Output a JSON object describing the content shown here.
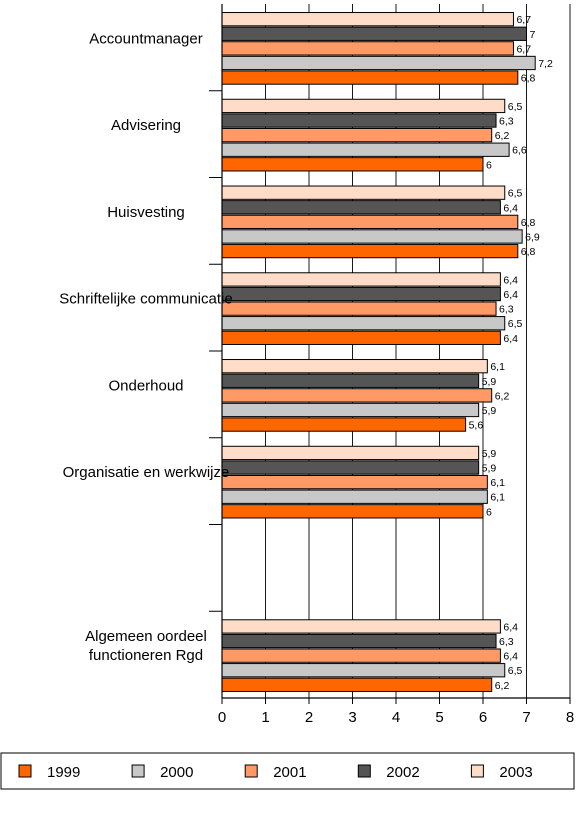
{
  "chart_data": {
    "type": "bar",
    "orientation": "horizontal",
    "categories": [
      [
        "Accountmanager"
      ],
      [
        "Advisering"
      ],
      [
        "Huisvesting"
      ],
      [
        "Schriftelijke communicatie"
      ],
      [
        "Onderhoud"
      ],
      [
        "Organisatie en werkwijze"
      ],
      [],
      [
        "Algemeen oordeel",
        "functioneren Rgd"
      ]
    ],
    "series": [
      {
        "name": "1999",
        "color": "#ff6600",
        "values": [
          6.8,
          6.0,
          6.8,
          6.4,
          5.6,
          6.0,
          null,
          6.2
        ],
        "labels": [
          "6,8",
          "6",
          "6,8",
          "6,4",
          "5,6",
          "6",
          "",
          "6,2"
        ]
      },
      {
        "name": "2000",
        "color": "#c8c8c8",
        "values": [
          7.2,
          6.6,
          6.9,
          6.5,
          5.9,
          6.1,
          null,
          6.5
        ],
        "labels": [
          "7,2",
          "6,6",
          "6,9",
          "6,5",
          "5,9",
          "6,1",
          "",
          "6,5"
        ]
      },
      {
        "name": "2001",
        "color": "#ff9966",
        "values": [
          6.7,
          6.2,
          6.8,
          6.3,
          6.2,
          6.1,
          null,
          6.4
        ],
        "labels": [
          "6,7",
          "6,2",
          "6,8",
          "6,3",
          "6,2",
          "6,1",
          "",
          "6,4"
        ]
      },
      {
        "name": "2002",
        "color": "#555555",
        "values": [
          7.0,
          6.3,
          6.4,
          6.4,
          5.9,
          5.9,
          null,
          6.3
        ],
        "labels": [
          "7",
          "6,3",
          "6,4",
          "6,4",
          "5,9",
          "5,9",
          "",
          "6,3"
        ]
      },
      {
        "name": "2003",
        "color": "#ffdcc8",
        "values": [
          6.7,
          6.5,
          6.5,
          6.4,
          6.1,
          5.9,
          null,
          6.4
        ],
        "labels": [
          "6,7",
          "6,5",
          "6,5",
          "6,4",
          "6,1",
          "5,9",
          "",
          "6,4"
        ]
      }
    ],
    "xlim": [
      0,
      8
    ],
    "xticks": [
      0,
      1,
      2,
      3,
      4,
      5,
      6,
      7,
      8
    ],
    "grid": true,
    "legend": "bottom"
  }
}
